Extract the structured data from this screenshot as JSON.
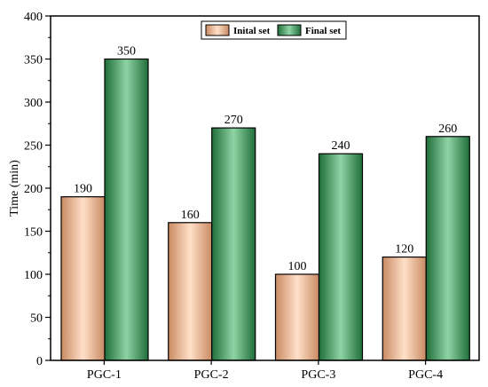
{
  "chart_data": {
    "type": "bar",
    "title": "",
    "xlabel": "",
    "ylabel": "Time (min)",
    "ylim": [
      0,
      400
    ],
    "yticks": [
      0,
      50,
      100,
      150,
      200,
      250,
      300,
      350,
      400
    ],
    "categories": [
      "PGC-1",
      "PGC-2",
      "PGC-3",
      "PGC-4"
    ],
    "series": [
      {
        "name": "Inital set",
        "values": [
          190,
          160,
          100,
          120
        ],
        "color": "#f2b48c"
      },
      {
        "name": "Final set",
        "values": [
          350,
          270,
          240,
          260
        ],
        "color": "#2f8f4e"
      }
    ],
    "legend": "top-center",
    "grid": false
  }
}
